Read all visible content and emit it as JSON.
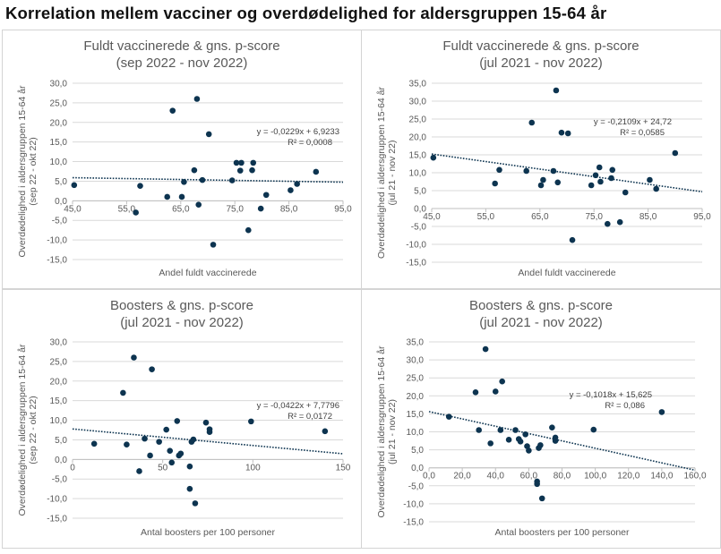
{
  "page_title": "Korrelation mellem vacciner og overdødelighed for aldersgruppen 15-64 år",
  "colors": {
    "point": "#0d3450",
    "trend": "#0d3450",
    "grid": "#d9d9d9",
    "axis": "#bfbfbf",
    "text": "#595959"
  },
  "chart_data": [
    {
      "type": "scatter",
      "title_lines": [
        "Fuldt vaccinerede & gns. p-score",
        "(sep 2022 - nov 2022)"
      ],
      "xlabel": "Andel fuldt vaccinerede",
      "ylabel_lines": [
        "Overdødelighed i aldersgruppen 15-64 år",
        "(sep 22 - okt 22)"
      ],
      "xlim": [
        45,
        95
      ],
      "ylim": [
        -15,
        30
      ],
      "xstep": 10,
      "ystep": 5,
      "decimals": 1,
      "trendline": {
        "slope": -0.0229,
        "intercept": 6.9233
      },
      "equation": "y = -0,0229x + 6,9233",
      "r2": "R² = 0,0008",
      "points": [
        [
          45.3,
          4.0
        ],
        [
          56.7,
          -3.0
        ],
        [
          57.5,
          3.8
        ],
        [
          62.5,
          1.0
        ],
        [
          63.5,
          23.0
        ],
        [
          65.2,
          1.0
        ],
        [
          65.6,
          4.8
        ],
        [
          67.5,
          7.8
        ],
        [
          68.0,
          26.0
        ],
        [
          68.3,
          -1.0
        ],
        [
          69.0,
          5.3
        ],
        [
          70.2,
          17.0
        ],
        [
          71.0,
          -11.2
        ],
        [
          74.5,
          5.2
        ],
        [
          75.3,
          9.7
        ],
        [
          76.0,
          7.7
        ],
        [
          76.2,
          9.7
        ],
        [
          77.5,
          -7.5
        ],
        [
          78.2,
          7.8
        ],
        [
          78.4,
          9.7
        ],
        [
          79.8,
          -2.0
        ],
        [
          80.8,
          1.5
        ],
        [
          85.3,
          2.7
        ],
        [
          86.5,
          4.3
        ],
        [
          90.0,
          7.4
        ]
      ]
    },
    {
      "type": "scatter",
      "title_lines": [
        "Fuldt vaccinerede & gns. p-score",
        "(jul 2021 - nov 2022)"
      ],
      "xlabel": "Andel fuldt vaccinerede",
      "ylabel_lines": [
        "Overdødelighed i aldersgruppen 15-64 år",
        "(jul 21 - nov 22)"
      ],
      "xlim": [
        45,
        95
      ],
      "ylim": [
        -15,
        35
      ],
      "xstep": 10,
      "ystep": 5,
      "decimals": 1,
      "trendline": {
        "slope": -0.2109,
        "intercept": 24.72
      },
      "equation": "y = -0,2109x + 24,72",
      "r2": "R² = 0,0585",
      "points": [
        [
          45.3,
          14.2
        ],
        [
          56.7,
          7.0
        ],
        [
          57.5,
          10.8
        ],
        [
          62.5,
          10.5
        ],
        [
          63.5,
          24.0
        ],
        [
          65.2,
          6.5
        ],
        [
          65.6,
          8.0
        ],
        [
          67.5,
          10.5
        ],
        [
          68.0,
          33.0
        ],
        [
          68.3,
          7.3
        ],
        [
          69.0,
          21.2
        ],
        [
          70.2,
          21.0
        ],
        [
          71.0,
          -8.8
        ],
        [
          74.5,
          6.5
        ],
        [
          75.3,
          9.3
        ],
        [
          76.0,
          11.5
        ],
        [
          76.2,
          7.5
        ],
        [
          77.5,
          -4.3
        ],
        [
          78.2,
          8.5
        ],
        [
          78.4,
          10.8
        ],
        [
          79.8,
          -3.8
        ],
        [
          80.8,
          4.5
        ],
        [
          85.3,
          8.0
        ],
        [
          86.5,
          5.5
        ],
        [
          90.0,
          15.5
        ]
      ]
    },
    {
      "type": "scatter",
      "title_lines": [
        "Boosters & gns. p-score",
        "(jul 2021 - nov 2022)"
      ],
      "xlabel": "Antal boosters per 100 personer",
      "ylabel_lines": [
        "Overdødelighed i aldersgruppen 15-64 år",
        "(sep 22 - okt 22)"
      ],
      "xlim": [
        0,
        150
      ],
      "ylim": [
        -15,
        30
      ],
      "xstep": 50,
      "ystep": 5,
      "decimals": 0,
      "trendline": {
        "slope": -0.0422,
        "intercept": 7.7796
      },
      "equation": "y = -0,0422x + 7,7796",
      "r2": "R² = 0,0172",
      "points": [
        [
          12,
          4.0
        ],
        [
          28,
          17.0
        ],
        [
          30,
          3.8
        ],
        [
          34,
          26.0
        ],
        [
          37,
          -3.0
        ],
        [
          40,
          5.3
        ],
        [
          43,
          1.0
        ],
        [
          44,
          23.0
        ],
        [
          48,
          4.5
        ],
        [
          52,
          7.6
        ],
        [
          54,
          2.2
        ],
        [
          55,
          -0.8
        ],
        [
          58,
          9.8
        ],
        [
          59,
          1.0
        ],
        [
          60,
          1.5
        ],
        [
          65,
          -1.8
        ],
        [
          65,
          -7.5
        ],
        [
          66,
          4.5
        ],
        [
          67,
          5.1
        ],
        [
          68,
          -11.2
        ],
        [
          74,
          9.4
        ],
        [
          76,
          7.7
        ],
        [
          76,
          7.0
        ],
        [
          99,
          9.7
        ],
        [
          140,
          7.2
        ]
      ]
    },
    {
      "type": "scatter",
      "title_lines": [
        "Boosters & gns. p-score",
        "(jul 2021 - nov 2022)"
      ],
      "xlabel": "Antal boosters per 100 personer",
      "ylabel_lines": [
        "Overdødelighed i aldersgruppen 15-64 år",
        "(jul 21 - nov 22)"
      ],
      "xlim": [
        0,
        160
      ],
      "ylim": [
        -15,
        35
      ],
      "xstep": 20,
      "ystep": 5,
      "decimals": 1,
      "trendline": {
        "slope": -0.1018,
        "intercept": 15.625
      },
      "equation": "y = -0,1018x + 15,625",
      "r2": "R² = 0,086",
      "points": [
        [
          12,
          14.2
        ],
        [
          28,
          21.0
        ],
        [
          30,
          10.5
        ],
        [
          34,
          33.0
        ],
        [
          37,
          6.8
        ],
        [
          40,
          21.2
        ],
        [
          43,
          10.5
        ],
        [
          44,
          24.0
        ],
        [
          48,
          7.8
        ],
        [
          52,
          10.5
        ],
        [
          54,
          8.0
        ],
        [
          55,
          7.3
        ],
        [
          58,
          9.3
        ],
        [
          59,
          6.0
        ],
        [
          60,
          4.8
        ],
        [
          65,
          -3.8
        ],
        [
          65,
          -4.5
        ],
        [
          66,
          5.5
        ],
        [
          67,
          6.3
        ],
        [
          68,
          -8.5
        ],
        [
          74,
          11.2
        ],
        [
          76,
          8.4
        ],
        [
          76,
          7.5
        ],
        [
          99,
          10.6
        ],
        [
          140,
          15.5
        ]
      ]
    }
  ]
}
